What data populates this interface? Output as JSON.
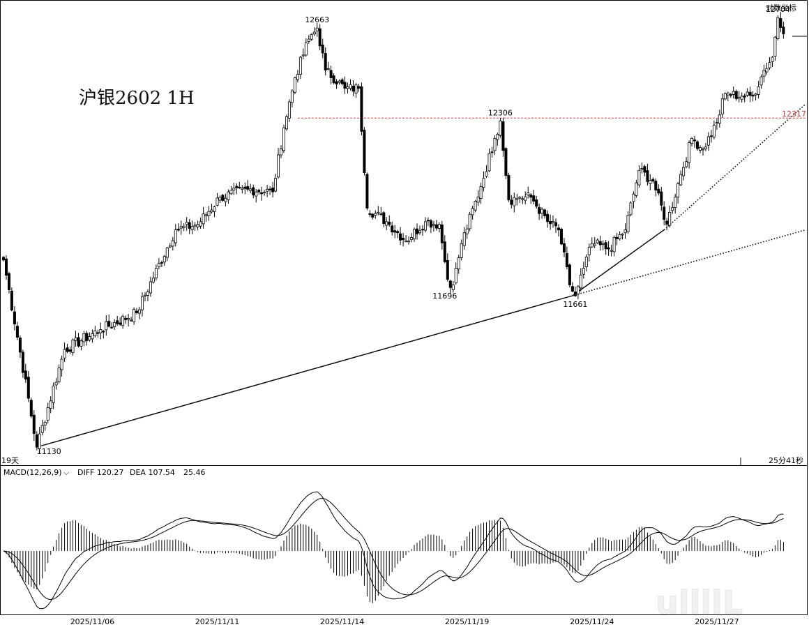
{
  "chart_data": {
    "type": "candlestick",
    "title": "沪银2602  1H",
    "scale_label": "对数坐标",
    "y_range": [
      11080,
      12740
    ],
    "price_scale": "log",
    "x_tick_labels": [
      "2025/11/06",
      "2025/11/11",
      "2025/11/14",
      "2025/11/19",
      "2025/11/24",
      "2025/11/27"
    ],
    "x_tick_index": [
      32,
      77,
      122,
      167,
      212,
      257
    ],
    "bar_count": 290,
    "bottom_left_label": "19天",
    "bottom_right_label": "25分41秒",
    "price_annotations": [
      {
        "label": "12663",
        "price": 12663
      },
      {
        "label": "12704",
        "price": 12704
      },
      {
        "label": "12306",
        "price": 12306
      },
      {
        "label": "11696",
        "price": 11696
      },
      {
        "label": "11661",
        "price": 11661
      },
      {
        "label": "11130",
        "price": 11130
      }
    ],
    "resistance_line": {
      "label": "12317",
      "price": 12317,
      "color": "#e03030",
      "style": "dashed",
      "from_index": 106
    },
    "trend_lines": [
      {
        "name": "long-support",
        "style": "solid",
        "from": [
          12,
          11130
        ],
        "to": [
          205,
          11661
        ]
      },
      {
        "name": "long-support-ext",
        "style": "dotted",
        "from": [
          205,
          11661
        ],
        "to": [
          289,
          11900
        ]
      },
      {
        "name": "steep-support",
        "style": "solid",
        "from": [
          205,
          11661
        ],
        "to": [
          238,
          11900
        ]
      },
      {
        "name": "steep-support-ext",
        "style": "dotted",
        "from": [
          238,
          11900
        ],
        "to": [
          289,
          12370
        ]
      }
    ],
    "anchors": [
      [
        0,
        11790
      ],
      [
        12,
        11130
      ],
      [
        22,
        11470
      ],
      [
        35,
        11540
      ],
      [
        48,
        11600
      ],
      [
        62,
        11900
      ],
      [
        70,
        11920
      ],
      [
        78,
        12020
      ],
      [
        88,
        12050
      ],
      [
        97,
        12040
      ],
      [
        101,
        12280
      ],
      [
        105,
        12470
      ],
      [
        110,
        12620
      ],
      [
        113,
        12663
      ],
      [
        116,
        12500
      ],
      [
        123,
        12430
      ],
      [
        128,
        12430
      ],
      [
        131,
        11980
      ],
      [
        138,
        11930
      ],
      [
        145,
        11860
      ],
      [
        152,
        11930
      ],
      [
        157,
        11920
      ],
      [
        160,
        11720
      ],
      [
        162,
        11700
      ],
      [
        165,
        11850
      ],
      [
        172,
        12060
      ],
      [
        177,
        12240
      ],
      [
        179,
        12306
      ],
      [
        182,
        12010
      ],
      [
        186,
        12020
      ],
      [
        190,
        12020
      ],
      [
        196,
        11930
      ],
      [
        200,
        11900
      ],
      [
        204,
        11700
      ],
      [
        206,
        11661
      ],
      [
        209,
        11760
      ],
      [
        212,
        11850
      ],
      [
        218,
        11830
      ],
      [
        224,
        11900
      ],
      [
        229,
        12120
      ],
      [
        234,
        12080
      ],
      [
        239,
        11920
      ],
      [
        243,
        12070
      ],
      [
        248,
        12240
      ],
      [
        252,
        12200
      ],
      [
        257,
        12300
      ],
      [
        260,
        12410
      ],
      [
        266,
        12400
      ],
      [
        270,
        12400
      ],
      [
        274,
        12500
      ],
      [
        277,
        12550
      ],
      [
        279,
        12704
      ],
      [
        281,
        12640
      ]
    ],
    "gap_after_index": 131,
    "macd": {
      "label": "MACD(12,26,9)",
      "diff_label": "DIFF 120.27",
      "dea_label": "DEA 107.54",
      "macd_value": "25.46",
      "diff": 120.27,
      "dea": 107.54,
      "hist": 25.46
    }
  },
  "watermark_text": "ullllL"
}
